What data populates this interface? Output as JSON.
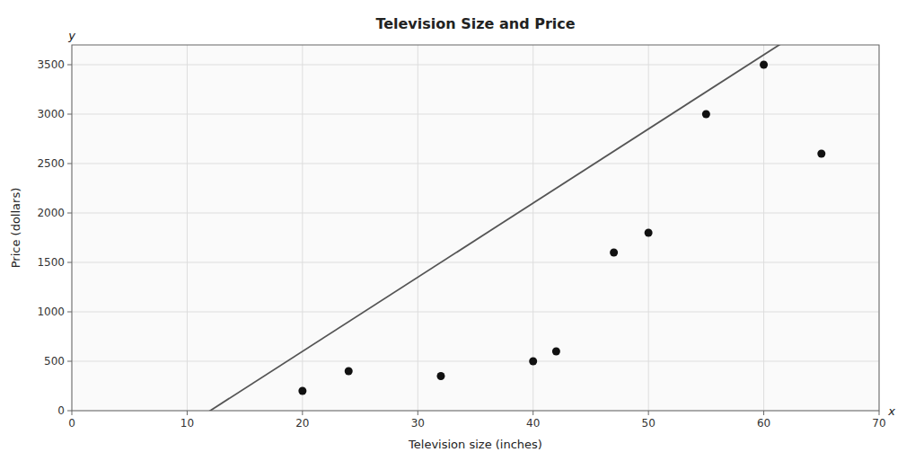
{
  "chart_data": {
    "type": "scatter",
    "title": "Television Size and Price",
    "x_label": "Television size (inches)",
    "y_label": "Price (dollars)",
    "x": [
      20,
      24,
      32,
      40,
      42,
      47,
      50,
      55,
      60,
      65
    ],
    "values": [
      200,
      400,
      350,
      500,
      600,
      1600,
      1800,
      3000,
      3500,
      2600
    ],
    "color": "#111111",
    "fit": {
      "slope": 75,
      "intercept": -900
    },
    "xlim": [
      0,
      70
    ],
    "ylim": [
      0,
      3700
    ],
    "xticks": [
      0,
      10,
      20,
      30,
      40,
      50,
      60,
      70
    ],
    "yticks": [
      0,
      500,
      1000,
      1500,
      2000,
      2500,
      3000,
      3500
    ],
    "grid": true,
    "annotations": [
      {
        "text": "x",
        "axis": "x"
      },
      {
        "text": "y",
        "axis": "y"
      }
    ]
  }
}
